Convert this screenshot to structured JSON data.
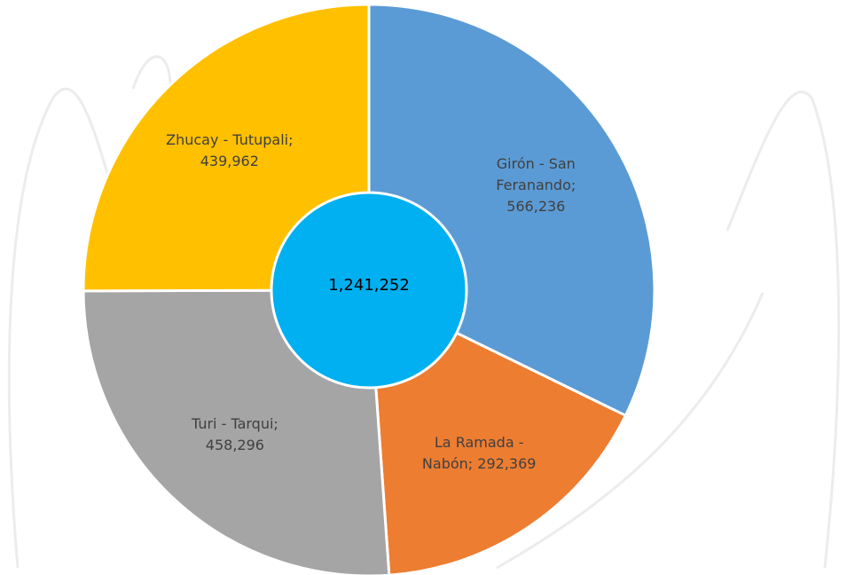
{
  "chart_data": {
    "type": "pie",
    "categories": [
      "Girón - San Feranando",
      "La Ramada - Nabón",
      "Turi - Tarqui",
      "Zhucay - Tutupali"
    ],
    "values": [
      566236,
      292369,
      458296,
      439962
    ],
    "value_labels": [
      "566,236",
      "292,369",
      "458,296",
      "439,962"
    ],
    "label_separator": ";",
    "colors": [
      "#5b9bd5",
      "#ed7d31",
      "#a5a5a5",
      "#ffc000"
    ],
    "center_label": "1,241,252",
    "center_color": "#00b0f0"
  }
}
